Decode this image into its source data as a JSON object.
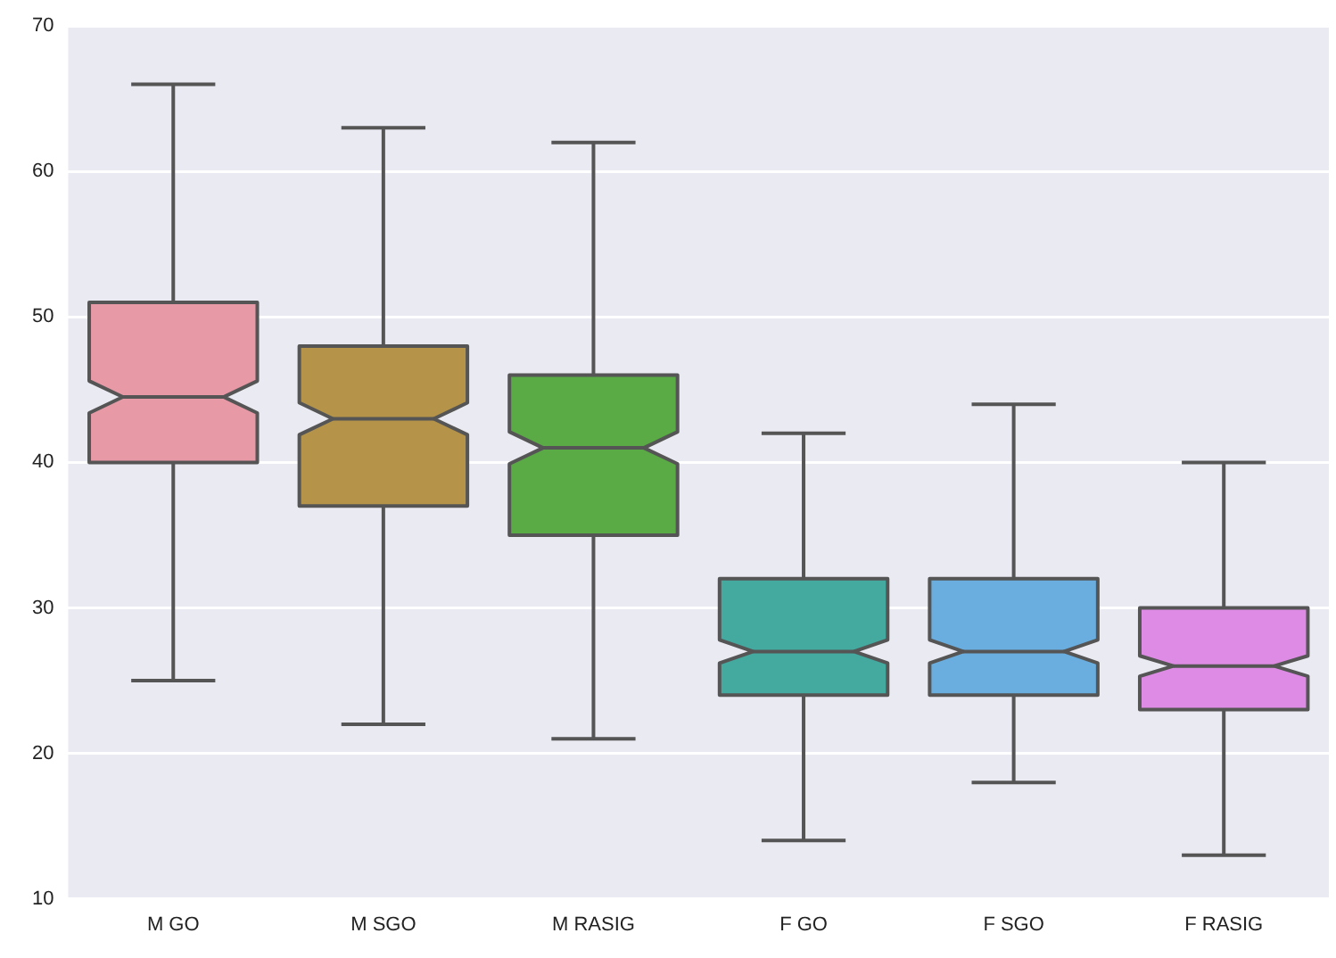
{
  "chart_data": {
    "type": "box",
    "categories": [
      "M GO",
      "M SGO",
      "M RASIG",
      "F GO",
      "F SGO",
      "F RASIG"
    ],
    "boxes": [
      {
        "low": 25,
        "q1": 40,
        "median": 44.5,
        "q3": 51,
        "high": 66
      },
      {
        "low": 22,
        "q1": 37,
        "median": 43,
        "q3": 48,
        "high": 63
      },
      {
        "low": 21,
        "q1": 35,
        "median": 41,
        "q3": 46,
        "high": 62
      },
      {
        "low": 14,
        "q1": 24,
        "median": 27,
        "q3": 32,
        "high": 42
      },
      {
        "low": 18,
        "q1": 24,
        "median": 27,
        "q3": 32,
        "high": 44
      },
      {
        "low": 13,
        "q1": 23,
        "median": 26,
        "q3": 30,
        "high": 40
      }
    ],
    "colors": [
      "#e899a6",
      "#b5944a",
      "#5aaa46",
      "#44a99f",
      "#6aaee0",
      "#de8be5"
    ],
    "ylim": [
      10,
      70
    ],
    "yticks": [
      10,
      20,
      30,
      40,
      50,
      60,
      70
    ],
    "grid": "y"
  }
}
